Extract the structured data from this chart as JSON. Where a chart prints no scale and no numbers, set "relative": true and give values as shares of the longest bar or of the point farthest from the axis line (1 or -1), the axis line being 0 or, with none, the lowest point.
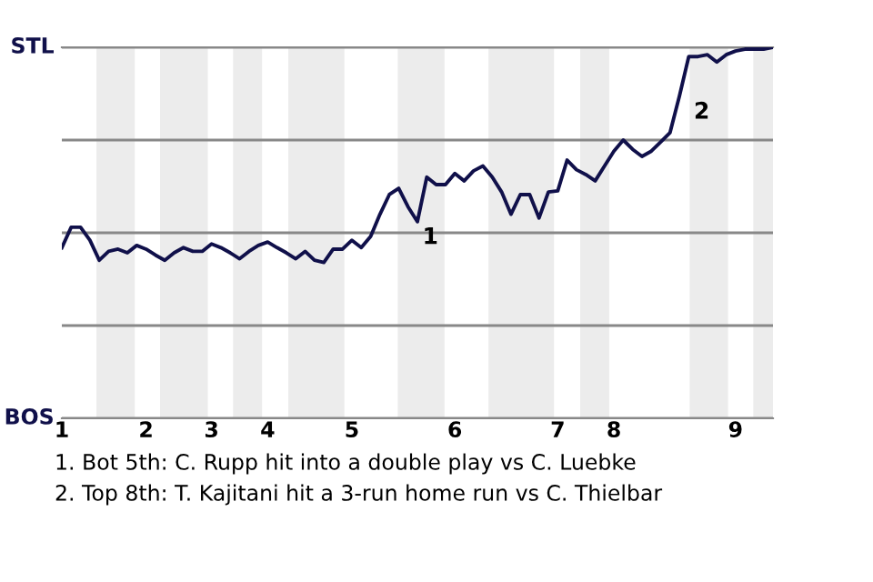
{
  "chart_data": {
    "type": "line",
    "relative": true,
    "categories": [
      "1",
      null,
      null,
      null,
      null,
      null,
      null,
      null,
      null,
      "2",
      null,
      null,
      null,
      null,
      null,
      null,
      "3",
      null,
      null,
      null,
      null,
      null,
      "4",
      null,
      null,
      null,
      null,
      null,
      null,
      null,
      null,
      "5",
      null,
      null,
      null,
      null,
      null,
      null,
      null,
      null,
      null,
      null,
      "6",
      null,
      null,
      null,
      null,
      null,
      null,
      null,
      null,
      null,
      null,
      "7",
      null,
      null,
      null,
      null,
      null,
      "8",
      null,
      null,
      null,
      null,
      null,
      null,
      null,
      null,
      null,
      null,
      null,
      null,
      "9",
      null,
      null,
      null,
      null
    ],
    "grid": "y",
    "legend": false,
    "marker": "none",
    "line_style": "solid",
    "series": [
      {
        "color": "#10104a",
        "values": [
          0.46,
          0.515,
          0.515,
          0.48,
          0.426,
          0.45,
          0.456,
          0.446,
          0.466,
          0.456,
          0.44,
          0.426,
          0.446,
          0.46,
          0.45,
          0.45,
          0.47,
          0.46,
          0.446,
          0.43,
          0.45,
          0.466,
          0.475,
          0.46,
          0.446,
          0.43,
          0.45,
          0.426,
          0.42,
          0.456,
          0.456,
          0.48,
          0.46,
          0.49,
          0.55,
          0.603,
          0.62,
          0.57,
          0.53,
          0.65,
          0.63,
          0.63,
          0.66,
          0.64,
          0.667,
          0.68,
          0.65,
          0.61,
          0.55,
          0.603,
          0.603,
          0.54,
          0.61,
          0.613,
          0.696,
          0.67,
          0.657,
          0.64,
          0.68,
          0.72,
          0.75,
          0.725,
          0.706,
          0.72,
          0.745,
          0.77,
          0.868,
          0.975,
          0.975,
          0.98,
          0.96,
          0.98,
          0.99,
          0.995,
          0.995,
          0.995,
          1
        ]
      }
    ],
    "annotations": [
      "STL",
      "BOS",
      "1",
      "2",
      "1. Bot 5th: C. Rupp hit into a double play vs C. Luebke",
      "2. Top 8th: T. Kajitani hit a 3-run home run vs C. Thielbar"
    ]
  }
}
